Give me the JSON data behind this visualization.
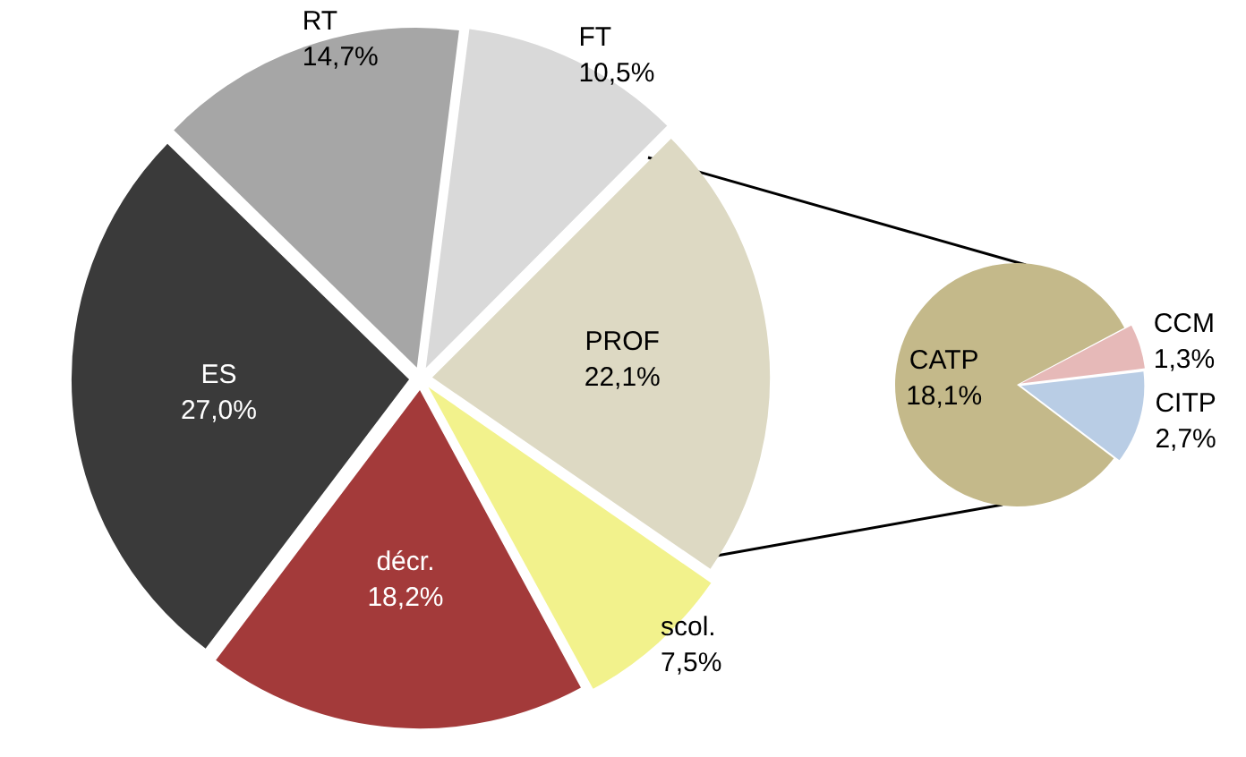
{
  "chart_data": [
    {
      "type": "pie",
      "categories": [
        "FT",
        "PROF",
        "scol.",
        "décr.",
        "ES",
        "RT"
      ],
      "values": [
        10.5,
        22.1,
        7.5,
        18.2,
        27.0,
        14.7
      ],
      "colors": [
        "#d9d9d9",
        "#ddd9c3",
        "#f2f28c",
        "#a33a3a",
        "#3a3a3a",
        "#a6a6a6"
      ],
      "value_labels": [
        "10,5%",
        "22,1%",
        "7,5%",
        "18,2%",
        "27,0%",
        "14,7%"
      ],
      "legend": false
    },
    {
      "type": "pie",
      "categories": [
        "CATP",
        "CCM",
        "CITP"
      ],
      "values": [
        18.1,
        1.3,
        2.7
      ],
      "colors": [
        "#c4b98a",
        "#e6b9b8",
        "#b9cde5"
      ],
      "value_labels": [
        "18,1%",
        "1,3%",
        "2,7%"
      ],
      "legend": false
    }
  ]
}
